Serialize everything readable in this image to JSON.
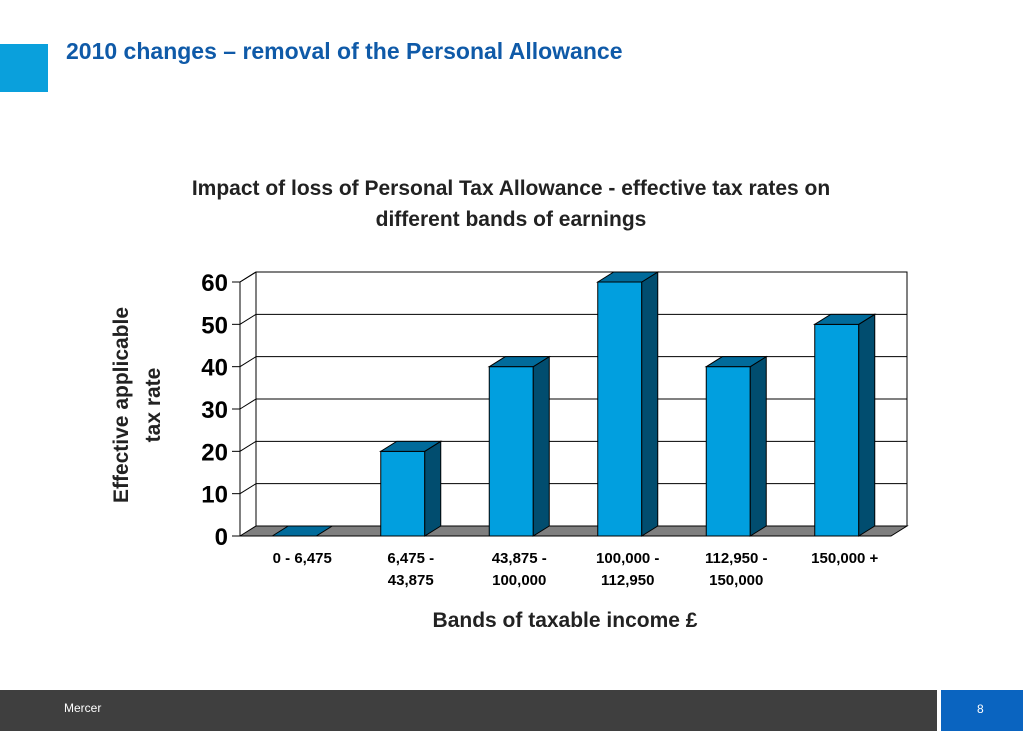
{
  "slide": {
    "title": "2010 changes – removal of the Personal Allowance",
    "footer_label": "Mercer",
    "page_number": "8"
  },
  "colors": {
    "accent": "#0aa0dc",
    "title": "#0f5aa8",
    "bar_front": "#019fdf",
    "bar_side": "#014d6f",
    "bar_top": "#016b9b",
    "footer_bg": "#3f3f3f",
    "page_number_bg": "#0a64c0"
  },
  "chart_data": {
    "type": "bar",
    "style": "3d",
    "title_lines": [
      "Impact of loss of Personal Tax Allowance - effective tax rates on",
      "different bands of earnings"
    ],
    "xlabel": "Bands of taxable income £",
    "ylabel_lines": [
      "Effective applicable",
      "tax rate"
    ],
    "categories": [
      [
        "0 - 6,475"
      ],
      [
        "6,475 -",
        "43,875"
      ],
      [
        "43,875 -",
        "100,000"
      ],
      [
        "100,000 -",
        "112,950"
      ],
      [
        "112,950 -",
        "150,000"
      ],
      [
        "150,000 +"
      ]
    ],
    "values": [
      0,
      20,
      40,
      60,
      40,
      50
    ],
    "ylim": [
      0,
      60
    ],
    "yticks": [
      0,
      10,
      20,
      30,
      40,
      50,
      60
    ],
    "grid": true,
    "legend": "none"
  }
}
